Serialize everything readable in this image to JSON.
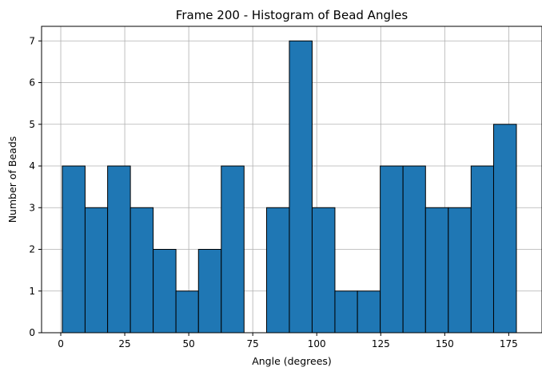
{
  "chart_data": {
    "type": "bar",
    "title": "Frame 200 - Histogram of Bead Angles",
    "xlabel": "Angle (degrees)",
    "ylabel": "Number of Beads",
    "xlim": [
      -7.5,
      188
    ],
    "ylim": [
      0,
      7.35
    ],
    "xticks": [
      0,
      25,
      50,
      75,
      100,
      125,
      150,
      175
    ],
    "yticks": [
      0,
      1,
      2,
      3,
      4,
      5,
      6,
      7
    ],
    "grid": true,
    "bar_color": "#1f77b4",
    "edge_color": "#000000",
    "bins": [
      {
        "start": 0.6,
        "end": 9.5,
        "count": 4
      },
      {
        "start": 9.5,
        "end": 18.3,
        "count": 3
      },
      {
        "start": 18.3,
        "end": 27.2,
        "count": 4
      },
      {
        "start": 27.2,
        "end": 36.1,
        "count": 3
      },
      {
        "start": 36.1,
        "end": 45.0,
        "count": 2
      },
      {
        "start": 45.0,
        "end": 53.8,
        "count": 1
      },
      {
        "start": 53.8,
        "end": 62.7,
        "count": 2
      },
      {
        "start": 62.7,
        "end": 71.6,
        "count": 4
      },
      {
        "start": 71.6,
        "end": 80.4,
        "count": 0
      },
      {
        "start": 80.4,
        "end": 89.3,
        "count": 3
      },
      {
        "start": 89.3,
        "end": 98.2,
        "count": 7
      },
      {
        "start": 98.2,
        "end": 107.1,
        "count": 3
      },
      {
        "start": 107.1,
        "end": 115.9,
        "count": 1
      },
      {
        "start": 115.9,
        "end": 124.8,
        "count": 1
      },
      {
        "start": 124.8,
        "end": 133.7,
        "count": 4
      },
      {
        "start": 133.7,
        "end": 142.5,
        "count": 4
      },
      {
        "start": 142.5,
        "end": 151.4,
        "count": 3
      },
      {
        "start": 151.4,
        "end": 160.3,
        "count": 3
      },
      {
        "start": 160.3,
        "end": 169.1,
        "count": 4
      },
      {
        "start": 169.1,
        "end": 178.0,
        "count": 5
      }
    ]
  }
}
